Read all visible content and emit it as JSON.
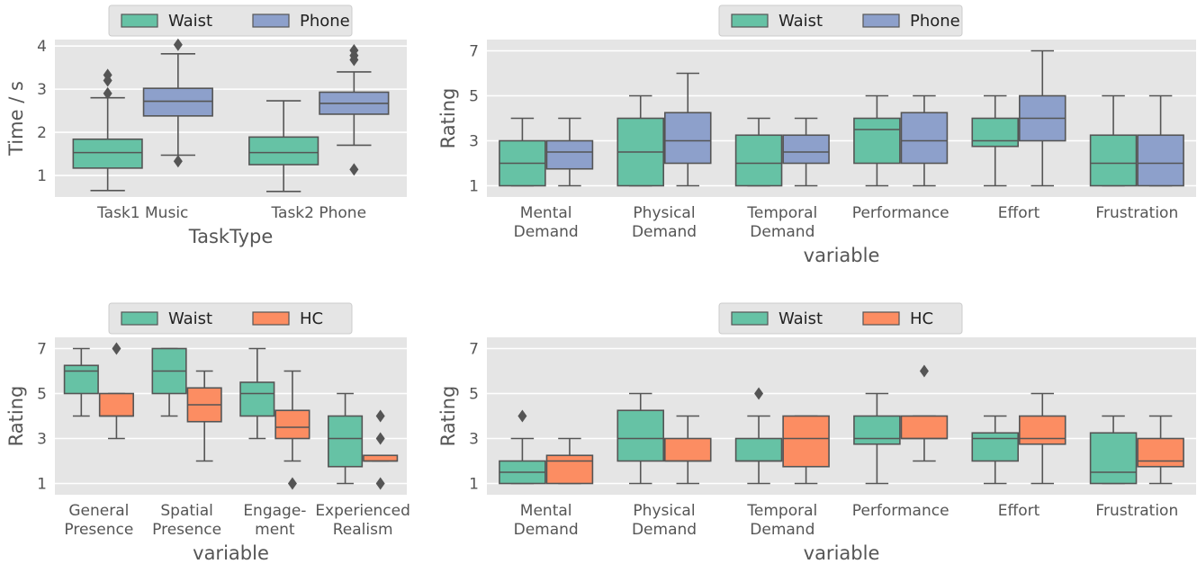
{
  "colors": {
    "Waist": "#66c2a5",
    "Phone": "#8da0cb",
    "HC": "#fc8d62",
    "panel_bg": "#e5e5e5",
    "grid": "#ffffff",
    "edge": "#555555"
  },
  "chart_data": [
    {
      "type": "box",
      "xlabel": "TaskType",
      "ylabel": "Time / s",
      "ylim": [
        0.5,
        4.15
      ],
      "yticks": [
        1,
        2,
        3,
        4
      ],
      "legend": {
        "position": "top-center",
        "entries": [
          "Waist",
          "Phone"
        ]
      },
      "grid": true,
      "categories": [
        [
          "Task1 Music"
        ],
        [
          "Task2 Phone"
        ]
      ],
      "series": [
        {
          "name": "Waist",
          "boxes": [
            {
              "low": 0.65,
              "q1": 1.17,
              "median": 1.53,
              "q3": 1.84,
              "high": 2.8,
              "outliers": [
                2.9,
                3.2,
                3.33
              ]
            },
            {
              "low": 0.63,
              "q1": 1.25,
              "median": 1.53,
              "q3": 1.89,
              "high": 2.73,
              "outliers": []
            }
          ]
        },
        {
          "name": "Phone",
          "boxes": [
            {
              "low": 1.47,
              "q1": 2.38,
              "median": 2.72,
              "q3": 3.02,
              "high": 3.82,
              "outliers": [
                1.33,
                4.03
              ]
            },
            {
              "low": 1.7,
              "q1": 2.42,
              "median": 2.67,
              "q3": 2.93,
              "high": 3.4,
              "outliers": [
                1.14,
                3.68,
                3.78,
                3.9
              ]
            }
          ]
        }
      ]
    },
    {
      "type": "box",
      "xlabel": "variable",
      "ylabel": "Rating",
      "ylim": [
        0.5,
        7.5
      ],
      "yticks": [
        1,
        3,
        5,
        7
      ],
      "legend": {
        "position": "top-center",
        "entries": [
          "Waist",
          "Phone"
        ]
      },
      "grid": true,
      "categories": [
        [
          "Mental",
          "Demand"
        ],
        [
          "Physical",
          "Demand"
        ],
        [
          "Temporal",
          "Demand"
        ],
        [
          "Performance"
        ],
        [
          "Effort"
        ],
        [
          "Frustration"
        ]
      ],
      "series": [
        {
          "name": "Waist",
          "boxes": [
            {
              "low": 1,
              "q1": 1,
              "median": 2,
              "q3": 3,
              "high": 4,
              "outliers": []
            },
            {
              "low": 1,
              "q1": 1,
              "median": 2.5,
              "q3": 4,
              "high": 5,
              "outliers": []
            },
            {
              "low": 1,
              "q1": 1,
              "median": 2,
              "q3": 3.25,
              "high": 4,
              "outliers": []
            },
            {
              "low": 1,
              "q1": 2,
              "median": 3.5,
              "q3": 4,
              "high": 5,
              "outliers": []
            },
            {
              "low": 1,
              "q1": 2.75,
              "median": 3,
              "q3": 4,
              "high": 5,
              "outliers": []
            },
            {
              "low": 1,
              "q1": 1,
              "median": 2,
              "q3": 3.25,
              "high": 5,
              "outliers": []
            }
          ]
        },
        {
          "name": "Phone",
          "boxes": [
            {
              "low": 1,
              "q1": 1.75,
              "median": 2.5,
              "q3": 3,
              "high": 4,
              "outliers": []
            },
            {
              "low": 1,
              "q1": 2,
              "median": 3,
              "q3": 4.25,
              "high": 6,
              "outliers": []
            },
            {
              "low": 1,
              "q1": 2,
              "median": 2.5,
              "q3": 3.25,
              "high": 4,
              "outliers": []
            },
            {
              "low": 1,
              "q1": 2,
              "median": 3,
              "q3": 4.25,
              "high": 5,
              "outliers": []
            },
            {
              "low": 1,
              "q1": 3,
              "median": 4,
              "q3": 5,
              "high": 7,
              "outliers": []
            },
            {
              "low": 1,
              "q1": 1,
              "median": 2,
              "q3": 3.25,
              "high": 5,
              "outliers": []
            }
          ]
        }
      ]
    },
    {
      "type": "box",
      "xlabel": "variable",
      "ylabel": "Rating",
      "ylim": [
        0.5,
        7.5
      ],
      "yticks": [
        1,
        3,
        5,
        7
      ],
      "legend": {
        "position": "top-center",
        "entries": [
          "Waist",
          "HC"
        ]
      },
      "grid": true,
      "categories": [
        [
          "General",
          "Presence"
        ],
        [
          "Spatial",
          "Presence"
        ],
        [
          "Engage-",
          "ment"
        ],
        [
          "Experienced",
          "Realism"
        ]
      ],
      "series": [
        {
          "name": "Waist",
          "boxes": [
            {
              "low": 4,
              "q1": 5,
              "median": 6,
              "q3": 6.25,
              "high": 7,
              "outliers": []
            },
            {
              "low": 4,
              "q1": 5,
              "median": 6,
              "q3": 7,
              "high": 7,
              "outliers": []
            },
            {
              "low": 3,
              "q1": 4,
              "median": 5,
              "q3": 5.5,
              "high": 7,
              "outliers": []
            },
            {
              "low": 1,
              "q1": 1.75,
              "median": 3,
              "q3": 4,
              "high": 5,
              "outliers": []
            }
          ]
        },
        {
          "name": "HC",
          "boxes": [
            {
              "low": 3,
              "q1": 4,
              "median": 4,
              "q3": 5,
              "high": 5,
              "outliers": [
                7
              ]
            },
            {
              "low": 2,
              "q1": 3.75,
              "median": 4.5,
              "q3": 5.25,
              "high": 6,
              "outliers": []
            },
            {
              "low": 2,
              "q1": 3,
              "median": 3.5,
              "q3": 4.25,
              "high": 6,
              "outliers": [
                1
              ]
            },
            {
              "low": 2,
              "q1": 2,
              "median": 2,
              "q3": 2.25,
              "high": 2.25,
              "outliers": [
                1,
                3,
                4
              ]
            }
          ]
        }
      ]
    },
    {
      "type": "box",
      "xlabel": "variable",
      "ylabel": "Rating",
      "ylim": [
        0.5,
        7.5
      ],
      "yticks": [
        1,
        3,
        5,
        7
      ],
      "legend": {
        "position": "top-center",
        "entries": [
          "Waist",
          "HC"
        ]
      },
      "grid": true,
      "categories": [
        [
          "Mental",
          "Demand"
        ],
        [
          "Physical",
          "Demand"
        ],
        [
          "Temporal",
          "Demand"
        ],
        [
          "Performance"
        ],
        [
          "Effort"
        ],
        [
          "Frustration"
        ]
      ],
      "series": [
        {
          "name": "Waist",
          "boxes": [
            {
              "low": 1,
              "q1": 1,
              "median": 1.5,
              "q3": 2,
              "high": 3,
              "outliers": [
                4
              ]
            },
            {
              "low": 1,
              "q1": 2,
              "median": 3,
              "q3": 4.25,
              "high": 5,
              "outliers": []
            },
            {
              "low": 1,
              "q1": 2,
              "median": 2,
              "q3": 3,
              "high": 4,
              "outliers": [
                5
              ]
            },
            {
              "low": 1,
              "q1": 2.75,
              "median": 3,
              "q3": 4,
              "high": 5,
              "outliers": []
            },
            {
              "low": 1,
              "q1": 2,
              "median": 3,
              "q3": 3.25,
              "high": 4,
              "outliers": []
            },
            {
              "low": 1,
              "q1": 1,
              "median": 1.5,
              "q3": 3.25,
              "high": 4,
              "outliers": []
            }
          ]
        },
        {
          "name": "HC",
          "boxes": [
            {
              "low": 1,
              "q1": 1,
              "median": 2,
              "q3": 2.25,
              "high": 3,
              "outliers": []
            },
            {
              "low": 1,
              "q1": 2,
              "median": 2,
              "q3": 3,
              "high": 4,
              "outliers": []
            },
            {
              "low": 1,
              "q1": 1.75,
              "median": 3,
              "q3": 4,
              "high": 4,
              "outliers": []
            },
            {
              "low": 2,
              "q1": 3,
              "median": 3,
              "q3": 4,
              "high": 4,
              "outliers": [
                6
              ]
            },
            {
              "low": 1,
              "q1": 2.75,
              "median": 3,
              "q3": 4,
              "high": 5,
              "outliers": []
            },
            {
              "low": 1,
              "q1": 1.75,
              "median": 2,
              "q3": 3,
              "high": 4,
              "outliers": []
            }
          ]
        }
      ]
    }
  ]
}
